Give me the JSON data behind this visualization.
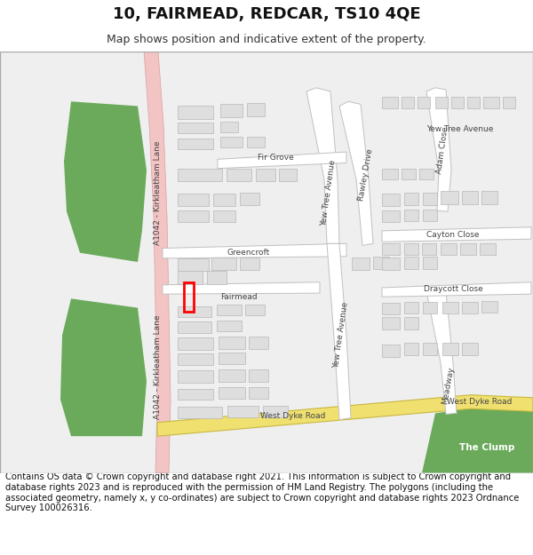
{
  "title": "10, FAIRMEAD, REDCAR, TS10 4QE",
  "subtitle": "Map shows position and indicative extent of the property.",
  "footer": "Contains OS data © Crown copyright and database right 2021. This information is subject to Crown copyright and database rights 2023 and is reproduced with the permission of HM Land Registry. The polygons (including the associated geometry, namely x, y co-ordinates) are subject to Crown copyright and database rights 2023 Ordnance Survey 100026316.",
  "bg_color": "#ffffff",
  "map_bg": "#efefef",
  "road_main_color": "#f2c4c4",
  "road_main_border": "#d8a0a0",
  "road_yellow_color": "#f0e070",
  "road_yellow_border": "#c8b840",
  "road_minor_color": "#ffffff",
  "road_minor_border": "#c0c0c0",
  "green_area_color": "#6aaa5a",
  "building_color": "#dedede",
  "building_border": "#b8b8b8",
  "highlight_color": "#ff0000",
  "text_color": "#444444",
  "map_border_color": "#aaaaaa",
  "title_fontsize": 13,
  "subtitle_fontsize": 9,
  "footer_fontsize": 7.2,
  "label_fontsize": 6.5
}
